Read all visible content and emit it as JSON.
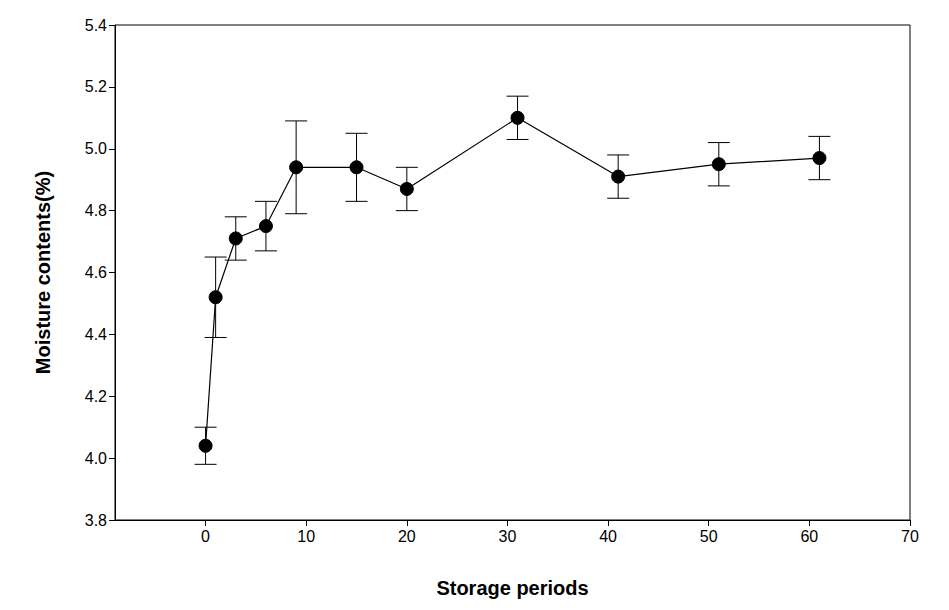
{
  "chart_data": {
    "type": "line",
    "x_label": "Storage periods",
    "y_label": "Moisture contents(%)",
    "x": [
      0,
      1,
      3,
      6,
      9,
      15,
      20,
      31,
      41,
      51,
      61
    ],
    "values": [
      4.04,
      4.52,
      4.71,
      4.75,
      4.94,
      4.94,
      4.87,
      5.1,
      4.91,
      4.95,
      4.97
    ],
    "error": [
      0.06,
      0.13,
      0.07,
      0.08,
      0.15,
      0.11,
      0.07,
      0.07,
      0.07,
      0.07,
      0.07
    ],
    "color": "#000000",
    "marker": "circle",
    "xlim": [
      -9,
      70
    ],
    "xticks": [
      0,
      10,
      20,
      30,
      40,
      50,
      60,
      70
    ],
    "ylim": [
      3.8,
      5.4
    ],
    "yticks": [
      3.8,
      {
        "value": 4,
        "label": "4.0"
      },
      4.2,
      4.4,
      4.6,
      4.8,
      {
        "value": 5,
        "label": "5.0"
      },
      5.2,
      5.4
    ],
    "grid": false
  }
}
